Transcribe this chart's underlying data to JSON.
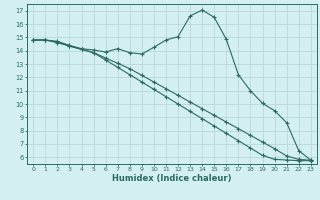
{
  "xlabel": "Humidex (Indice chaleur)",
  "bg_color": "#d4efef",
  "grid_color": "#b8d8d8",
  "line_color": "#2a6b5e",
  "ylim": [
    5.5,
    17.5
  ],
  "xlim": [
    -0.5,
    23.5
  ],
  "yticks": [
    6,
    7,
    8,
    9,
    10,
    11,
    12,
    13,
    14,
    15,
    16,
    17
  ],
  "xticks": [
    0,
    1,
    2,
    3,
    4,
    5,
    6,
    7,
    8,
    9,
    10,
    11,
    12,
    13,
    14,
    15,
    16,
    17,
    18,
    19,
    20,
    21,
    22,
    23
  ],
  "line1_x": [
    0,
    1,
    2,
    3,
    4,
    5,
    6,
    7,
    8,
    9,
    10,
    11,
    12,
    13,
    14,
    15,
    16,
    17,
    18,
    19,
    20,
    21,
    22,
    23
  ],
  "line1_y": [
    14.8,
    14.8,
    14.7,
    14.4,
    14.15,
    14.05,
    13.9,
    14.15,
    13.85,
    13.75,
    14.25,
    14.8,
    15.05,
    16.6,
    17.05,
    16.5,
    14.85,
    12.2,
    11.0,
    10.05,
    9.5,
    8.6,
    6.5,
    5.8
  ],
  "line2_x": [
    0,
    1,
    2,
    3,
    4,
    5,
    6,
    7,
    8,
    9,
    10,
    11,
    12,
    13,
    14,
    15,
    16,
    17,
    18,
    19,
    20,
    21,
    22,
    23
  ],
  "line2_y": [
    14.8,
    14.8,
    14.65,
    14.35,
    14.1,
    13.85,
    13.3,
    12.75,
    12.2,
    11.65,
    11.1,
    10.55,
    10.0,
    9.45,
    8.9,
    8.35,
    7.8,
    7.25,
    6.7,
    6.15,
    5.85,
    5.8,
    5.75,
    5.75
  ],
  "line3_x": [
    0,
    1,
    2,
    3,
    4,
    5,
    6,
    7,
    8,
    9,
    10,
    11,
    12,
    13,
    14,
    15,
    16,
    17,
    18,
    19,
    20,
    21,
    22,
    23
  ],
  "line3_y": [
    14.8,
    14.8,
    14.6,
    14.35,
    14.1,
    13.85,
    13.45,
    13.05,
    12.65,
    12.15,
    11.65,
    11.15,
    10.65,
    10.15,
    9.65,
    9.15,
    8.65,
    8.15,
    7.65,
    7.15,
    6.65,
    6.1,
    5.85,
    5.78
  ]
}
